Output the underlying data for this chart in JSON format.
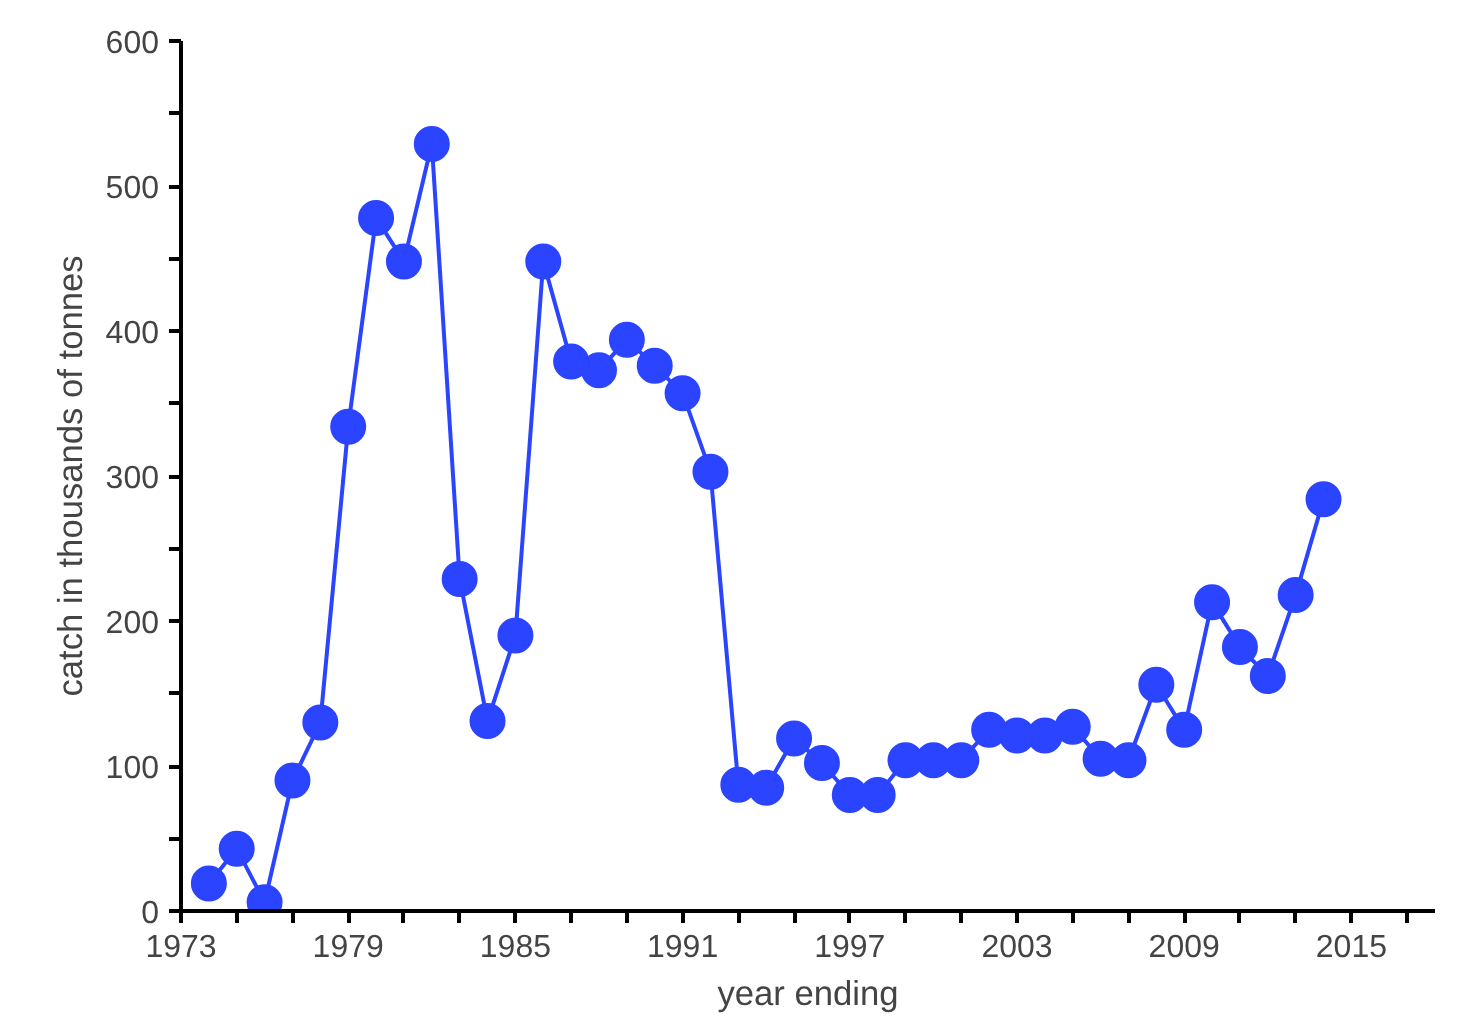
{
  "chart_data": {
    "type": "line",
    "xlabel": "year ending",
    "ylabel": "catch in thousands of tonnes",
    "x": [
      1974,
      1975,
      1976,
      1977,
      1978,
      1979,
      1980,
      1981,
      1982,
      1983,
      1984,
      1985,
      1986,
      1987,
      1988,
      1989,
      1990,
      1991,
      1992,
      1993,
      1994,
      1995,
      1996,
      1997,
      1998,
      1999,
      2000,
      2001,
      2002,
      2003,
      2004,
      2005,
      2006,
      2007,
      2008,
      2009,
      2010,
      2011,
      2012,
      2013,
      2014
    ],
    "series": [
      {
        "color": "#2a44ff",
        "values": [
          19,
          43,
          6,
          90,
          130,
          334,
          478,
          448,
          529,
          229,
          131,
          190,
          448,
          379,
          373,
          394,
          376,
          357,
          303,
          87,
          85,
          119,
          102,
          80,
          80,
          104,
          104,
          104,
          125,
          121,
          121,
          127,
          105,
          104,
          156,
          125,
          213,
          182,
          162,
          218,
          284
        ]
      }
    ],
    "xlim": [
      1973,
      2018
    ],
    "xticks": [
      1973,
      1979,
      1985,
      1991,
      1997,
      2003,
      2009,
      2015
    ],
    "ylim": [
      0,
      600
    ],
    "yticks": [
      0,
      100,
      200,
      300,
      400,
      500,
      600
    ],
    "marker": "circle",
    "line_style": "solid",
    "grid": false
  }
}
